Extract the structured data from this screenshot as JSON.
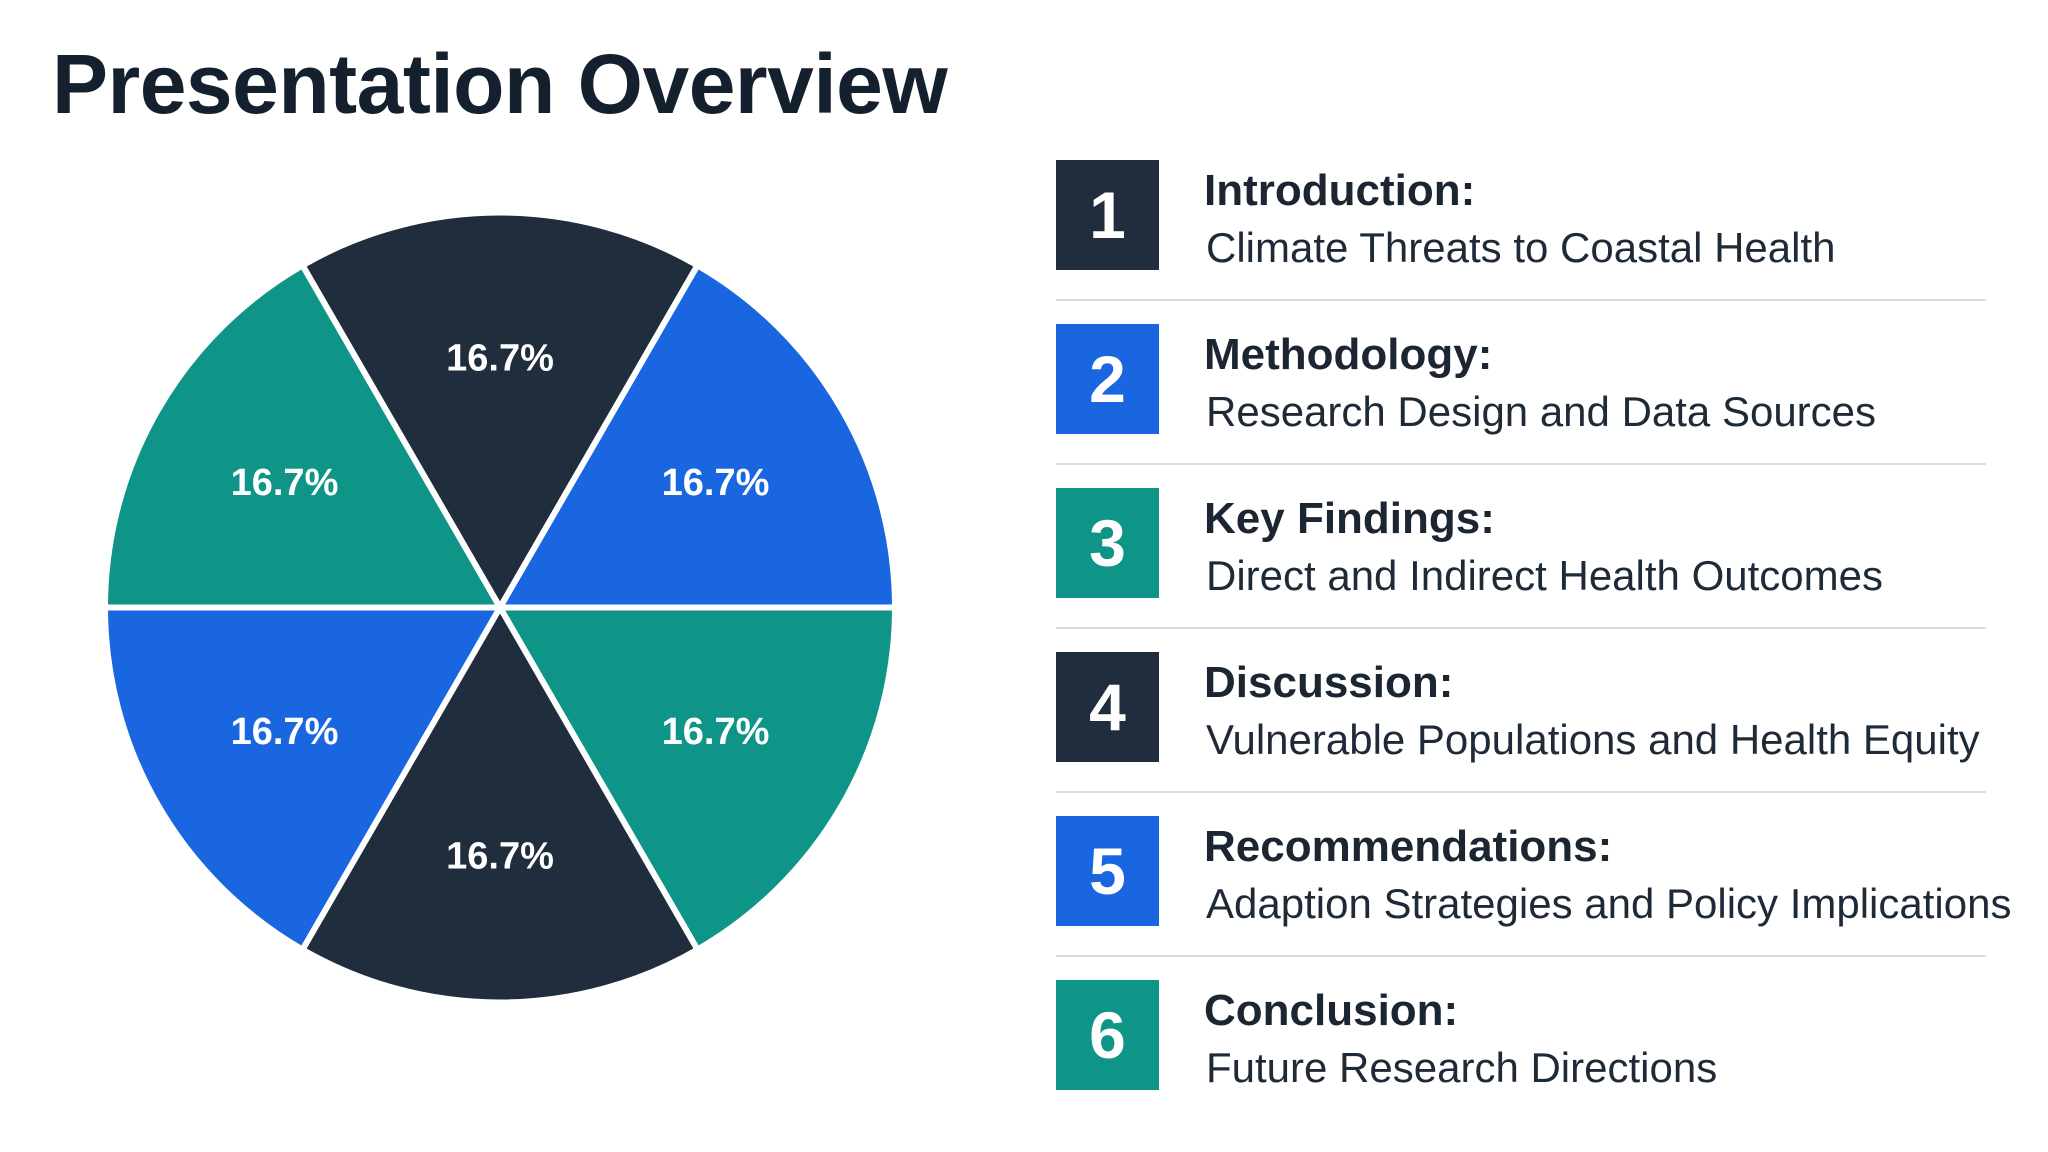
{
  "page": {
    "title": "Presentation Overview"
  },
  "colors": {
    "dark": "#1f2d3d",
    "blue": "#1a66e0",
    "teal": "#0f9488"
  },
  "chart_data": {
    "type": "pie",
    "title": "",
    "slices": [
      {
        "label": "16.7%",
        "value": 16.7,
        "color": "#1f2d3d"
      },
      {
        "label": "16.7%",
        "value": 16.7,
        "color": "#1a66e0"
      },
      {
        "label": "16.7%",
        "value": 16.7,
        "color": "#0f9488"
      },
      {
        "label": "16.7%",
        "value": 16.7,
        "color": "#1f2d3d"
      },
      {
        "label": "16.7%",
        "value": 16.7,
        "color": "#1a66e0"
      },
      {
        "label": "16.7%",
        "value": 16.7,
        "color": "#0f9488"
      }
    ],
    "start_angle_deg": -30,
    "direction": "clockwise"
  },
  "agenda": [
    {
      "number": "1",
      "title": "Introduction:",
      "subtitle": "Climate Threats to Coastal Health",
      "color": "#1f2d3d"
    },
    {
      "number": "2",
      "title": "Methodology:",
      "subtitle": "Research Design and Data Sources",
      "color": "#1a66e0"
    },
    {
      "number": "3",
      "title": "Key Findings:",
      "subtitle": "Direct and Indirect Health Outcomes",
      "color": "#0f9488"
    },
    {
      "number": "4",
      "title": "Discussion:",
      "subtitle": "Vulnerable Populations and Health Equity",
      "color": "#1f2d3d"
    },
    {
      "number": "5",
      "title": "Recommendations:",
      "subtitle": "Adaption Strategies and Policy Implications",
      "color": "#1a66e0"
    },
    {
      "number": "6",
      "title": "Conclusion:",
      "subtitle": "Future Research Directions",
      "color": "#0f9488"
    }
  ]
}
